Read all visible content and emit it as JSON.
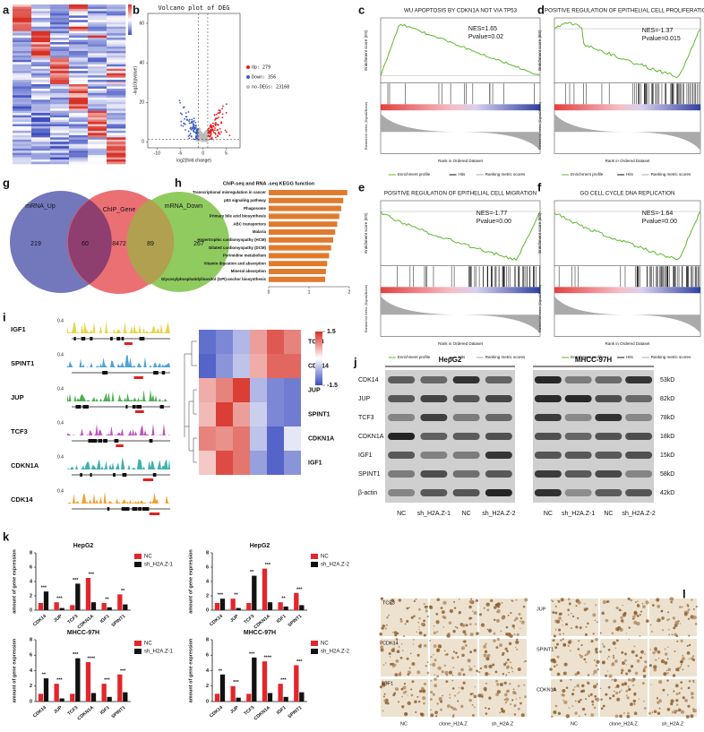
{
  "panel_labels": [
    "a",
    "b",
    "c",
    "d",
    "e",
    "f",
    "g",
    "h",
    "i",
    "j",
    "k",
    "l"
  ],
  "volcano": {
    "title": "Volcano plot of DEG",
    "xlabel": "log2(fold change)",
    "ylabel": "-log10(pvalue)",
    "xlim": [
      -12,
      8
    ],
    "ylim": [
      -3,
      65
    ],
    "xticks": [
      -10,
      -5,
      0,
      5
    ],
    "yticks": [
      0,
      20,
      40,
      60
    ],
    "legend": [
      "Up: 279",
      "Down: 356",
      "no-DEGs: 23168"
    ],
    "colors": [
      "#e41a1c",
      "#3b5bbf",
      "#bbbbbb"
    ]
  },
  "gsea": {
    "ylabel": "Enrichment score (ES)",
    "ylabel2": "Ranked list metric (Signal2Noise)",
    "xlabel": "Rank in Ordered Dataset",
    "legend": [
      "Enrichment profile",
      "Hits",
      "Ranking metric scores"
    ],
    "panels": [
      {
        "title": "WU APOPTOSIS BY CDKN1A NOT VIA TP53",
        "nes": "NES=1.65",
        "pvalue": "Pvalue=0.02"
      },
      {
        "title": "POSITIVE REGULATION OF EPITHELIAL CELL PROLIFERATION",
        "nes": "NES=-1.37",
        "pvalue": "Pvalue=0.015"
      },
      {
        "title": "POSITIVE REGULATION OF EPITHELIAL CELL MIGRATION",
        "nes": "NES=-1.77",
        "pvalue": "Pvalue=0.00"
      },
      {
        "title": "GO CELL CYCLE DNA REPLICATION",
        "nes": "NES=-1.64",
        "pvalue": "Pvalue=0.00"
      }
    ]
  },
  "venn": {
    "sets": [
      "mRNA_Up",
      "ChIP_Gene",
      "mRNA_Down"
    ],
    "counts": [
      219,
      60,
      8472,
      89,
      267
    ]
  },
  "tracks": {
    "genes": [
      "IGF1",
      "SPINT1",
      "JUP",
      "TCF3",
      "CDKN1A",
      "CDK14"
    ],
    "scale": "0.4"
  },
  "heatmap": {
    "rows": [
      "TCF3",
      "CDK14",
      "JUP",
      "SPINT1",
      "CDKN1A",
      "IGF1"
    ],
    "values": [
      [
        -1.2,
        -1,
        -0.6,
        0.7,
        1.2,
        0.9
      ],
      [
        -1.3,
        -0.9,
        -0.5,
        0.6,
        1.1,
        1.1
      ],
      [
        0.6,
        0.9,
        1.4,
        -0.6,
        -1,
        -1.1
      ],
      [
        0.5,
        1.4,
        0.7,
        -0.4,
        -1,
        -1.1
      ],
      [
        0.9,
        0.8,
        1,
        -0.5,
        -1.3,
        -0.2
      ],
      [
        0.4,
        1.3,
        1,
        -0.8,
        -1.3,
        -0.9
      ]
    ],
    "scale": [
      1.5,
      -1.5
    ]
  },
  "western": {
    "cell_lines": [
      "HepG2",
      "MHCC-97H"
    ],
    "proteins": [
      "CDK14",
      "JUP",
      "TCF3",
      "CDKN1A",
      "IGF1",
      "SPINT1",
      "β-actin"
    ],
    "sizes": [
      "53kD",
      "82kD",
      "78kD",
      "18kD",
      "15kD",
      "58kD",
      "42kD"
    ],
    "lanes": [
      "NC",
      "sh_H2A.Z-1",
      "NC",
      "sh_H2A.Z-2"
    ]
  },
  "ihc": {
    "left_rows": [
      "TCF3",
      "CDK14",
      "IGF1"
    ],
    "right_rows": [
      "JUP",
      "SPINT1",
      "CDKN1A"
    ],
    "columns": [
      "NC",
      "clone_H2A.Z",
      "sh_H2A.Z"
    ]
  },
  "chart_data": [
    {
      "type": "barh",
      "title": "ChIP-seq and RNA -seq KEGG function",
      "categories": [
        "Transcriptional misregulation in cancer",
        "p53 signaling pathway",
        "Phagosome",
        "Primary bile acid biosynthesis",
        "ABC transporters",
        "Malaria",
        "Hypertrophic cardiomyopathy (HCM)",
        "Dilated cardiomyopathy (DCM)",
        "Pyrimidine metabolism",
        "Vitamin digestion and absorption",
        "Mineral absorption",
        "Glycosylphosphatidylinositol (GPI)-anchor biosynthesis"
      ],
      "values": [
        1.95,
        1.85,
        1.8,
        1.75,
        1.7,
        1.65,
        1.6,
        1.55,
        1.5,
        1.45,
        1.42,
        1.4
      ],
      "color": "#e07b2e",
      "xlim": [
        0,
        2
      ],
      "xticks": [
        0,
        1,
        2
      ]
    },
    {
      "type": "bar",
      "title": "HepG2",
      "ylabel": "amount of gene expression",
      "categories": [
        "CDK14",
        "JUP",
        "TCF3",
        "CDKN1A",
        "IGF1",
        "SPINT1"
      ],
      "series": [
        {
          "name": "NC",
          "color": "#e3262b",
          "values": [
            1,
            1.1,
            0.7,
            4.5,
            1,
            2.2
          ]
        },
        {
          "name": "sh_H2A.Z-1",
          "color": "#111111",
          "values": [
            2.6,
            0.3,
            3.7,
            1.1,
            0.4,
            0.8
          ]
        }
      ],
      "significance": [
        "***",
        "***",
        "***",
        "***",
        "**",
        "**"
      ],
      "ylim": [
        0,
        8
      ],
      "yticks": [
        0,
        2,
        4,
        6,
        8
      ]
    },
    {
      "type": "bar",
      "title": "HepG2",
      "ylabel": "amount of gene expression",
      "categories": [
        "CDK14",
        "JUP",
        "TCF3",
        "CDKN1A",
        "IGF1",
        "SPINT1"
      ],
      "series": [
        {
          "name": "NC",
          "color": "#e3262b",
          "values": [
            1,
            1.6,
            1,
            5.8,
            1.1,
            2.4
          ]
        },
        {
          "name": "sh_H2A.Z-2",
          "color": "#111111",
          "values": [
            1.6,
            0.3,
            4.8,
            1.1,
            0.5,
            0.7
          ]
        }
      ],
      "significance": [
        "***",
        "**",
        "**",
        "***",
        "**",
        "***"
      ],
      "ylim": [
        0,
        8
      ],
      "yticks": [
        0,
        2,
        4,
        6,
        8
      ]
    },
    {
      "type": "bar",
      "title": "MHCC-97H",
      "ylabel": "amount of gene expression",
      "categories": [
        "CDK14",
        "JUP",
        "TCF3",
        "CDKN1A",
        "IGF1",
        "SPINT1"
      ],
      "series": [
        {
          "name": "NC",
          "color": "#e3262b",
          "values": [
            1,
            2.3,
            1,
            5.1,
            2.3,
            3.5
          ]
        },
        {
          "name": "sh_H2A.Z-1",
          "color": "#111111",
          "values": [
            3,
            0.4,
            5.6,
            1.1,
            0.6,
            1.2
          ]
        }
      ],
      "significance": [
        "**",
        "***",
        "***",
        "****",
        "***",
        "***"
      ],
      "ylim": [
        0,
        8
      ],
      "yticks": [
        0,
        2,
        4,
        6,
        8
      ]
    },
    {
      "type": "bar",
      "title": "MHCC-97H",
      "ylabel": "amount of gene expression",
      "categories": [
        "CDK14",
        "JUP",
        "TCF3",
        "CDKN1A",
        "IGF1",
        "SPINT1"
      ],
      "series": [
        {
          "name": "NC",
          "color": "#e3262b",
          "values": [
            1,
            2,
            1,
            5.2,
            2.3,
            4.7
          ]
        },
        {
          "name": "sh_H2A.Z-2",
          "color": "#111111",
          "values": [
            3.5,
            0.5,
            5.7,
            1.1,
            0.6,
            1.2
          ]
        }
      ],
      "significance": [
        "**",
        "***",
        "***",
        "****",
        "***",
        "***"
      ],
      "ylim": [
        0,
        8
      ],
      "yticks": [
        0,
        2,
        4,
        6,
        8
      ]
    }
  ]
}
